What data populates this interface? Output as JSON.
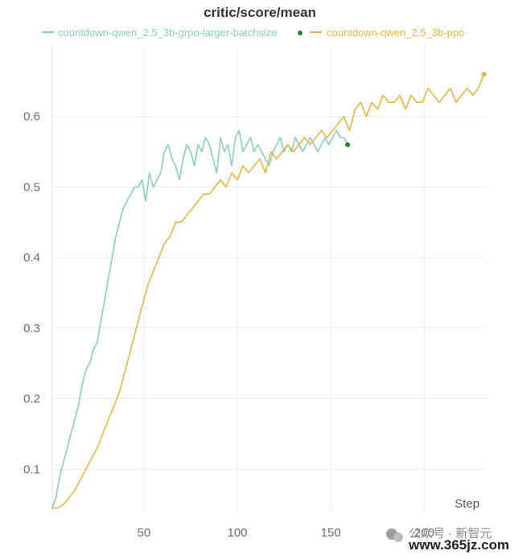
{
  "chart_data": {
    "type": "line",
    "title": "critic/score/mean",
    "xlabel": "Step",
    "ylabel": "",
    "xlim": [
      1,
      233
    ],
    "ylim": [
      0.04,
      0.7
    ],
    "x_ticks": [
      50,
      100,
      150,
      200
    ],
    "y_ticks": [
      0.1,
      0.2,
      0.3,
      0.4,
      0.5,
      0.6
    ],
    "grid": true,
    "legend_position": "top",
    "series": [
      {
        "name": "countdown-qwen_2.5_3b-grpo-larger-batchsize",
        "color": "#86cfc0",
        "marker_color": "#2e7d32",
        "x": [
          1,
          3,
          5,
          7,
          9,
          11,
          13,
          15,
          17,
          19,
          21,
          23,
          25,
          27,
          29,
          31,
          33,
          35,
          37,
          39,
          41,
          43,
          45,
          47,
          49,
          51,
          53,
          55,
          57,
          59,
          61,
          63,
          65,
          67,
          69,
          71,
          73,
          75,
          77,
          79,
          81,
          83,
          85,
          87,
          89,
          91,
          93,
          95,
          97,
          99,
          101,
          103,
          105,
          107,
          109,
          111,
          113,
          115,
          117,
          119,
          121,
          123,
          125,
          127,
          129,
          131,
          133,
          135,
          137,
          139,
          141,
          143,
          145,
          147,
          149,
          151,
          153,
          155,
          157,
          159
        ],
        "values": [
          0.045,
          0.06,
          0.09,
          0.11,
          0.13,
          0.15,
          0.17,
          0.19,
          0.22,
          0.24,
          0.25,
          0.27,
          0.28,
          0.31,
          0.34,
          0.37,
          0.4,
          0.43,
          0.45,
          0.47,
          0.48,
          0.49,
          0.5,
          0.5,
          0.51,
          0.48,
          0.52,
          0.5,
          0.51,
          0.52,
          0.55,
          0.56,
          0.54,
          0.53,
          0.51,
          0.54,
          0.56,
          0.55,
          0.53,
          0.56,
          0.55,
          0.57,
          0.56,
          0.54,
          0.52,
          0.57,
          0.55,
          0.56,
          0.53,
          0.57,
          0.58,
          0.55,
          0.56,
          0.57,
          0.55,
          0.56,
          0.55,
          0.54,
          0.53,
          0.55,
          0.56,
          0.57,
          0.55,
          0.56,
          0.55,
          0.57,
          0.56,
          0.55,
          0.56,
          0.57,
          0.56,
          0.55,
          0.56,
          0.57,
          0.56,
          0.57,
          0.58,
          0.57,
          0.57,
          0.56
        ]
      },
      {
        "name": "countdown-qwen_2.5_3b-ppo",
        "color": "#e8b63c",
        "marker_color": "#e8b63c",
        "x": [
          1,
          4,
          7,
          10,
          13,
          16,
          19,
          22,
          25,
          28,
          31,
          34,
          37,
          40,
          43,
          46,
          49,
          52,
          55,
          58,
          61,
          64,
          67,
          70,
          73,
          76,
          79,
          82,
          85,
          88,
          91,
          94,
          97,
          100,
          103,
          106,
          109,
          112,
          115,
          118,
          121,
          124,
          127,
          130,
          133,
          136,
          139,
          142,
          145,
          148,
          151,
          154,
          157,
          160,
          163,
          166,
          169,
          172,
          175,
          178,
          181,
          184,
          187,
          190,
          193,
          196,
          199,
          202,
          205,
          208,
          211,
          214,
          217,
          220,
          223,
          226,
          229,
          232
        ],
        "values": [
          0.045,
          0.045,
          0.05,
          0.06,
          0.07,
          0.085,
          0.1,
          0.115,
          0.13,
          0.15,
          0.17,
          0.19,
          0.21,
          0.24,
          0.27,
          0.3,
          0.33,
          0.36,
          0.38,
          0.4,
          0.42,
          0.43,
          0.45,
          0.45,
          0.46,
          0.47,
          0.48,
          0.49,
          0.49,
          0.5,
          0.51,
          0.5,
          0.52,
          0.51,
          0.53,
          0.52,
          0.53,
          0.54,
          0.52,
          0.55,
          0.54,
          0.55,
          0.56,
          0.55,
          0.56,
          0.57,
          0.56,
          0.57,
          0.58,
          0.57,
          0.58,
          0.59,
          0.6,
          0.58,
          0.61,
          0.62,
          0.6,
          0.62,
          0.61,
          0.63,
          0.62,
          0.62,
          0.63,
          0.61,
          0.63,
          0.62,
          0.62,
          0.64,
          0.63,
          0.62,
          0.63,
          0.64,
          0.62,
          0.63,
          0.64,
          0.63,
          0.64,
          0.66
        ]
      }
    ]
  },
  "watermark": {
    "channel": "公众号 · 新智元",
    "url": "www.365jz.com"
  }
}
